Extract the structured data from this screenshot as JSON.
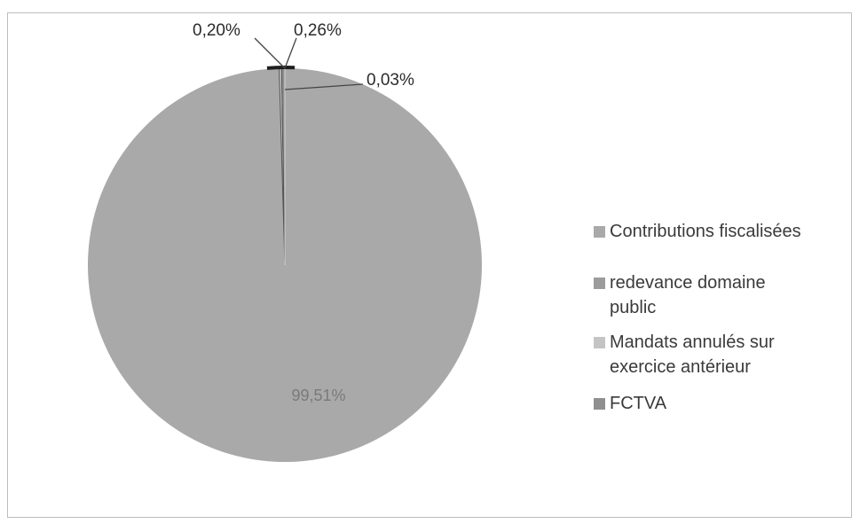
{
  "colors": {
    "contributions": "#a9a9a9",
    "redevance": "#9c9c9c",
    "mandats": "#c4c4c4",
    "fctva": "#8f8f8f",
    "frame_border": "#bdbdbd",
    "leader_line": "#444444"
  },
  "chart_data": {
    "type": "pie",
    "title": "",
    "slices": [
      {
        "label": "Contributions fiscalisées",
        "value": 99.51,
        "display": "99,51%"
      },
      {
        "label": "redevance domaine public",
        "value": 0.03,
        "display": "0,03%"
      },
      {
        "label": "Mandats annulés sur exercice antérieur",
        "value": 0.2,
        "display": "0,20%"
      },
      {
        "label": "FCTVA",
        "value": 0.26,
        "display": "0,26%"
      }
    ],
    "legend_position": "right"
  }
}
